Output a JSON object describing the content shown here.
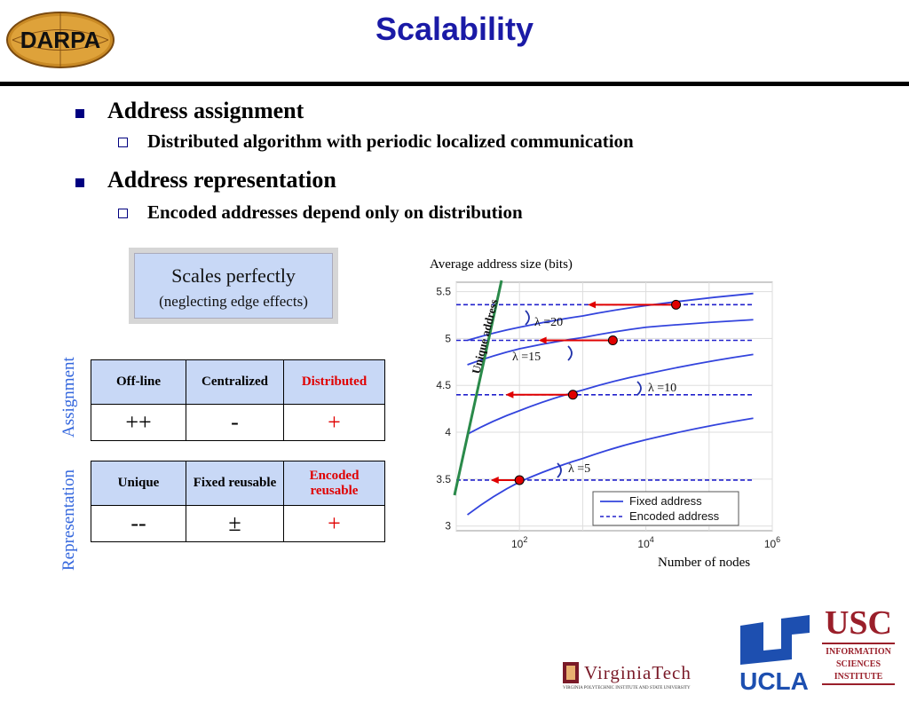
{
  "slide": {
    "title": "Scalability"
  },
  "logos": {
    "darpa": "DARPA",
    "virginia_tech": "VirginiaTech",
    "virginia_tech_sub": "VIRGINIA POLYTECHNIC INSTITUTE AND STATE UNIVERSITY",
    "ucla": "UCLA",
    "usc": "USC",
    "usc_lines": [
      "INFORMATION",
      "SCIENCES",
      "INSTITUTE"
    ]
  },
  "bullets": [
    {
      "text": "Address assignment",
      "sub": "Distributed algorithm with periodic localized communication"
    },
    {
      "text": "Address representation",
      "sub": "Encoded addresses depend only on distribution"
    }
  ],
  "callout": {
    "line1": "Scales perfectly",
    "line2": "(neglecting edge effects)"
  },
  "assignment_table": {
    "side_label": "Assignment",
    "headers": [
      "Off-line",
      "Centralized",
      "Distributed"
    ],
    "values": [
      "++",
      "-",
      "+"
    ]
  },
  "representation_table": {
    "side_label": "Representation",
    "headers": [
      "Unique",
      "Fixed reusable",
      "Encoded reusable"
    ],
    "values": [
      "--",
      "±",
      "+"
    ]
  },
  "chart_data": {
    "type": "line",
    "title": "Average address size (bits)",
    "xlabel": "Number of nodes",
    "ylabel": "",
    "xscale": "log",
    "xlim": [
      10,
      1000000
    ],
    "ylim": [
      2.95,
      5.6
    ],
    "xticks": [
      "10^2",
      "10^4",
      "10^6"
    ],
    "yticks": [
      "3",
      "3.5",
      "4",
      "4.5",
      "5",
      "5.5"
    ],
    "grid": true,
    "legend": {
      "position": "bottom-right",
      "entries": [
        "Fixed address",
        "Encoded address"
      ]
    },
    "annotations": [
      "λ =20",
      "λ =15",
      "λ =10",
      "λ =5",
      "Unique address"
    ],
    "colors": {
      "fixed": "#3344dd",
      "encoded": "#2222cc",
      "unique": "#2a8a4a",
      "arrow": "#e00000"
    },
    "series": [
      {
        "name": "Fixed address",
        "lambda": 20,
        "x": [
          15,
          100,
          1000,
          10000,
          500000
        ],
        "y": [
          4.98,
          5.12,
          5.24,
          5.35,
          5.48
        ]
      },
      {
        "name": "Fixed address",
        "lambda": 15,
        "x": [
          15,
          100,
          1000,
          10000,
          500000
        ],
        "y": [
          4.72,
          4.89,
          5.01,
          5.12,
          5.2
        ]
      },
      {
        "name": "Fixed address",
        "lambda": 10,
        "x": [
          15,
          100,
          1000,
          10000,
          500000
        ],
        "y": [
          3.98,
          4.23,
          4.45,
          4.62,
          4.83
        ]
      },
      {
        "name": "Fixed address",
        "lambda": 5,
        "x": [
          15,
          100,
          1000,
          10000,
          500000
        ],
        "y": [
          3.12,
          3.47,
          3.72,
          3.92,
          4.15
        ]
      },
      {
        "name": "Encoded address",
        "lambda": 20,
        "x": [
          10,
          500000
        ],
        "y": [
          5.36,
          5.36
        ]
      },
      {
        "name": "Encoded address",
        "lambda": 15,
        "x": [
          10,
          500000
        ],
        "y": [
          4.98,
          4.98
        ]
      },
      {
        "name": "Encoded address",
        "lambda": 10,
        "x": [
          10,
          500000
        ],
        "y": [
          4.4,
          4.4
        ]
      },
      {
        "name": "Encoded address",
        "lambda": 5,
        "x": [
          10,
          500000
        ],
        "y": [
          3.49,
          3.49
        ]
      }
    ],
    "intersections": [
      {
        "lambda": 20,
        "x": 30000,
        "y": 5.36
      },
      {
        "lambda": 15,
        "x": 3000,
        "y": 4.98
      },
      {
        "lambda": 10,
        "x": 700,
        "y": 4.4
      },
      {
        "lambda": 5,
        "x": 100,
        "y": 3.49
      }
    ]
  }
}
